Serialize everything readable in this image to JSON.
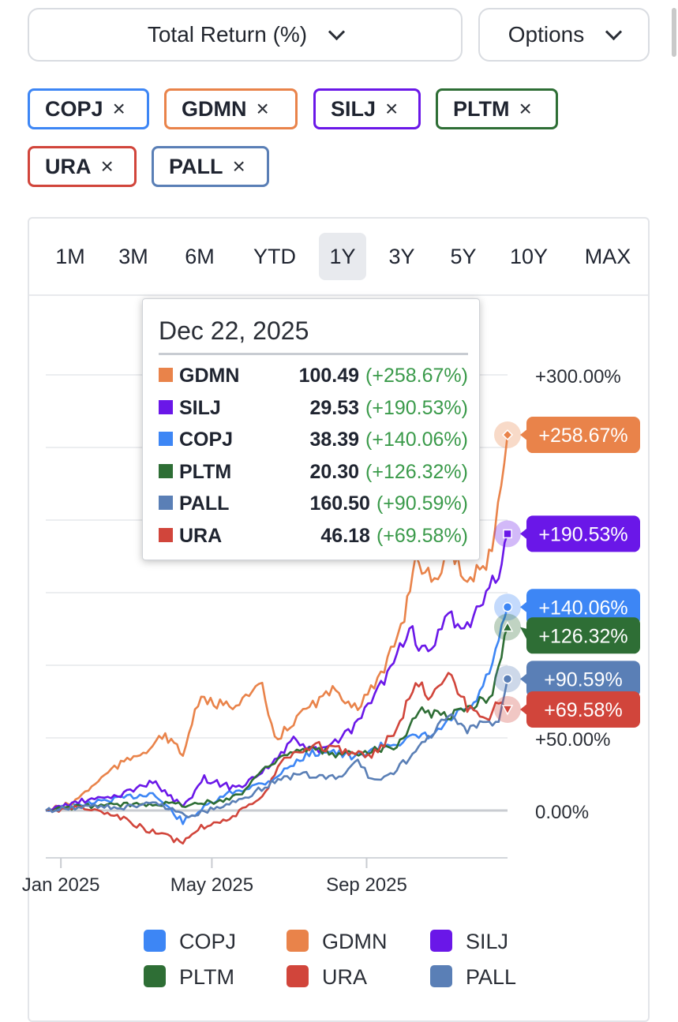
{
  "header": {
    "metric_select": {
      "label": "Total Return (%)",
      "icon": "chevron-down-icon"
    },
    "options_select": {
      "label": "Options",
      "icon": "chevron-down-icon"
    }
  },
  "tags": [
    {
      "symbol": "COPJ",
      "color": "#3d86f5"
    },
    {
      "symbol": "GDMN",
      "color": "#e9834a"
    },
    {
      "symbol": "SILJ",
      "color": "#6a17e8"
    },
    {
      "symbol": "PLTM",
      "color": "#2e6e35"
    },
    {
      "symbol": "URA",
      "color": "#d1453b"
    },
    {
      "symbol": "PALL",
      "color": "#5a7fb6"
    }
  ],
  "remove_icon": "×",
  "ranges": {
    "items": [
      "1M",
      "3M",
      "6M",
      "YTD",
      "1Y",
      "3Y",
      "5Y",
      "10Y",
      "MAX"
    ],
    "active": "1Y"
  },
  "tooltip": {
    "date": "Dec 22, 2025",
    "rows": [
      {
        "symbol": "GDMN",
        "value": "100.49",
        "change": "(+258.67%)",
        "color": "#e9834a"
      },
      {
        "symbol": "SILJ",
        "value": "29.53",
        "change": "(+190.53%)",
        "color": "#6a17e8"
      },
      {
        "symbol": "COPJ",
        "value": "38.39",
        "change": "(+140.06%)",
        "color": "#3d86f5"
      },
      {
        "symbol": "PLTM",
        "value": "20.30",
        "change": "(+126.32%)",
        "color": "#2e6e35"
      },
      {
        "symbol": "PALL",
        "value": "160.50",
        "change": "(+90.59%)",
        "color": "#5a7fb6"
      },
      {
        "symbol": "URA",
        "value": "46.18",
        "change": "(+69.58%)",
        "color": "#d1453b"
      }
    ]
  },
  "chart_data": {
    "type": "line",
    "title": "",
    "xlabel": "",
    "ylabel": "",
    "x_range": [
      "2024-12-20",
      "2025-12-22"
    ],
    "ylim": [
      -30,
      320
    ],
    "y_ticks": [
      0,
      50,
      100,
      150,
      200,
      250,
      300
    ],
    "y_tick_labels": {
      "0": "0.00%",
      "50": "+50.00%",
      "300": "+300.00%"
    },
    "x_ticks": [
      {
        "date": "2025-01-01",
        "label": "Jan 2025"
      },
      {
        "date": "2025-05-01",
        "label": "May 2025"
      },
      {
        "date": "2025-09-01",
        "label": "Sep 2025"
      }
    ],
    "grid": true,
    "legend_position": "bottom",
    "series": [
      {
        "name": "COPJ",
        "color": "#3d86f5",
        "marker": "circle",
        "end_label": "+140.06%",
        "points": [
          [
            "2024-12-20",
            0
          ],
          [
            "2025-01-15",
            4
          ],
          [
            "2025-02-15",
            8
          ],
          [
            "2025-03-15",
            12
          ],
          [
            "2025-04-08",
            -8
          ],
          [
            "2025-04-25",
            2
          ],
          [
            "2025-05-15",
            12
          ],
          [
            "2025-06-15",
            20
          ],
          [
            "2025-07-15",
            38
          ],
          [
            "2025-08-01",
            42
          ],
          [
            "2025-08-20",
            36
          ],
          [
            "2025-09-15",
            45
          ],
          [
            "2025-10-10",
            50
          ],
          [
            "2025-10-25",
            52
          ],
          [
            "2025-11-10",
            65
          ],
          [
            "2025-11-25",
            72
          ],
          [
            "2025-12-05",
            90
          ],
          [
            "2025-12-15",
            115
          ],
          [
            "2025-12-22",
            140.06
          ]
        ]
      },
      {
        "name": "GDMN",
        "color": "#e9834a",
        "marker": "diamond",
        "end_label": "+258.67%",
        "points": [
          [
            "2024-12-20",
            0
          ],
          [
            "2025-01-10",
            5
          ],
          [
            "2025-02-10",
            28
          ],
          [
            "2025-03-10",
            42
          ],
          [
            "2025-03-25",
            52
          ],
          [
            "2025-04-08",
            38
          ],
          [
            "2025-04-20",
            75
          ],
          [
            "2025-05-15",
            72
          ],
          [
            "2025-06-10",
            85
          ],
          [
            "2025-06-20",
            48
          ],
          [
            "2025-07-15",
            70
          ],
          [
            "2025-08-05",
            82
          ],
          [
            "2025-08-25",
            72
          ],
          [
            "2025-09-15",
            95
          ],
          [
            "2025-10-01",
            135
          ],
          [
            "2025-10-10",
            175
          ],
          [
            "2025-10-25",
            155
          ],
          [
            "2025-11-05",
            180
          ],
          [
            "2025-11-20",
            160
          ],
          [
            "2025-12-05",
            170
          ],
          [
            "2025-12-12",
            190
          ],
          [
            "2025-12-22",
            258.67
          ]
        ]
      },
      {
        "name": "SILJ",
        "color": "#6a17e8",
        "marker": "square",
        "end_label": "+190.53%",
        "points": [
          [
            "2024-12-20",
            0
          ],
          [
            "2025-01-15",
            6
          ],
          [
            "2025-02-15",
            10
          ],
          [
            "2025-03-15",
            20
          ],
          [
            "2025-04-08",
            2
          ],
          [
            "2025-04-25",
            22
          ],
          [
            "2025-05-20",
            15
          ],
          [
            "2025-06-15",
            30
          ],
          [
            "2025-07-05",
            48
          ],
          [
            "2025-07-25",
            40
          ],
          [
            "2025-08-20",
            55
          ],
          [
            "2025-09-10",
            82
          ],
          [
            "2025-10-05",
            125
          ],
          [
            "2025-10-20",
            105
          ],
          [
            "2025-11-05",
            135
          ],
          [
            "2025-11-20",
            125
          ],
          [
            "2025-12-05",
            148
          ],
          [
            "2025-12-15",
            165
          ],
          [
            "2025-12-22",
            190.53
          ]
        ]
      },
      {
        "name": "PLTM",
        "color": "#2e6e35",
        "marker": "triangle",
        "end_label": "+126.32%",
        "points": [
          [
            "2024-12-20",
            0
          ],
          [
            "2025-01-20",
            3
          ],
          [
            "2025-02-20",
            4
          ],
          [
            "2025-03-20",
            5
          ],
          [
            "2025-04-10",
            4
          ],
          [
            "2025-05-05",
            6
          ],
          [
            "2025-05-25",
            12
          ],
          [
            "2025-06-10",
            28
          ],
          [
            "2025-06-25",
            38
          ],
          [
            "2025-07-20",
            42
          ],
          [
            "2025-08-10",
            38
          ],
          [
            "2025-09-05",
            42
          ],
          [
            "2025-09-25",
            45
          ],
          [
            "2025-10-15",
            70
          ],
          [
            "2025-10-30",
            65
          ],
          [
            "2025-11-15",
            68
          ],
          [
            "2025-11-30",
            75
          ],
          [
            "2025-12-10",
            80
          ],
          [
            "2025-12-22",
            126.32
          ]
        ]
      },
      {
        "name": "URA",
        "color": "#d1453b",
        "marker": "triangle-down",
        "end_label": "+69.58%",
        "points": [
          [
            "2024-12-20",
            0
          ],
          [
            "2025-01-20",
            2
          ],
          [
            "2025-02-20",
            -6
          ],
          [
            "2025-03-15",
            -15
          ],
          [
            "2025-04-08",
            -22
          ],
          [
            "2025-04-20",
            -12
          ],
          [
            "2025-05-15",
            -5
          ],
          [
            "2025-06-10",
            8
          ],
          [
            "2025-06-25",
            35
          ],
          [
            "2025-07-20",
            45
          ],
          [
            "2025-08-10",
            42
          ],
          [
            "2025-09-05",
            38
          ],
          [
            "2025-09-25",
            55
          ],
          [
            "2025-10-10",
            90
          ],
          [
            "2025-10-20",
            80
          ],
          [
            "2025-11-05",
            95
          ],
          [
            "2025-11-20",
            70
          ],
          [
            "2025-12-05",
            60
          ],
          [
            "2025-12-15",
            75
          ],
          [
            "2025-12-22",
            69.58
          ]
        ]
      },
      {
        "name": "PALL",
        "color": "#5a7fb6",
        "marker": "circle",
        "end_label": "+90.59%",
        "points": [
          [
            "2024-12-20",
            0
          ],
          [
            "2025-01-20",
            3
          ],
          [
            "2025-02-20",
            2
          ],
          [
            "2025-03-20",
            5
          ],
          [
            "2025-04-10",
            -4
          ],
          [
            "2025-05-05",
            2
          ],
          [
            "2025-05-25",
            8
          ],
          [
            "2025-06-20",
            20
          ],
          [
            "2025-07-10",
            25
          ],
          [
            "2025-08-10",
            22
          ],
          [
            "2025-08-25",
            35
          ],
          [
            "2025-09-05",
            20
          ],
          [
            "2025-09-20",
            25
          ],
          [
            "2025-10-10",
            40
          ],
          [
            "2025-10-25",
            55
          ],
          [
            "2025-11-05",
            65
          ],
          [
            "2025-11-20",
            55
          ],
          [
            "2025-12-05",
            60
          ],
          [
            "2025-12-15",
            62
          ],
          [
            "2025-12-22",
            90.59
          ]
        ]
      }
    ]
  }
}
